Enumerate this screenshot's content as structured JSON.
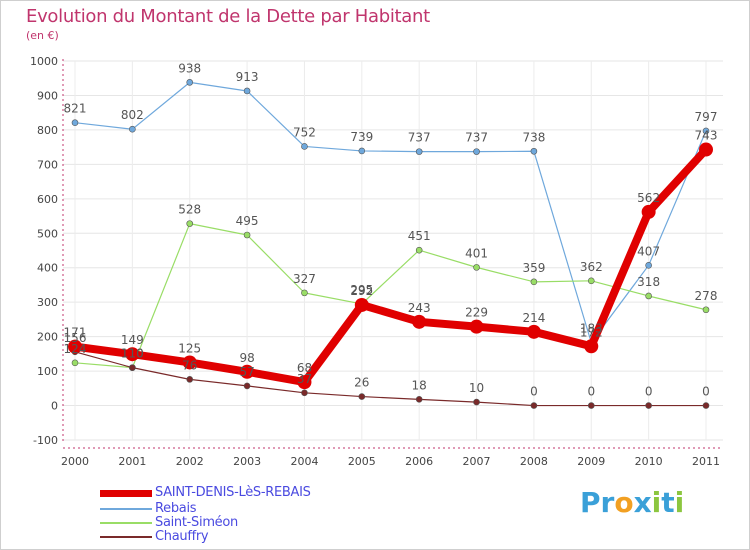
{
  "brand": {
    "letters": [
      "P",
      "r",
      "o",
      "x",
      "i",
      "t",
      "i"
    ],
    "colors": [
      "#3aa0d8",
      "#3aa0d8",
      "#f2a022",
      "#3aa0d8",
      "#8cc63f",
      "#3aa0d8",
      "#8cc63f"
    ]
  },
  "chart_data": {
    "type": "line",
    "title": "Evolution du Montant de la Dette par Habitant",
    "subtitle": "(en €)",
    "x": [
      "2000",
      "2001",
      "2002",
      "2003",
      "2004",
      "2005",
      "2006",
      "2007",
      "2008",
      "2009",
      "2010",
      "2011"
    ],
    "ylim": [
      -100,
      1000
    ],
    "yticks": [
      "-100",
      "0",
      "100",
      "200",
      "300",
      "400",
      "500",
      "600",
      "700",
      "800",
      "900",
      "1000"
    ],
    "grid": true,
    "legend_position": "bottom-left",
    "series": [
      {
        "name": "SAINT-DENIS-LèS-REBAIS",
        "color": "#e00000",
        "values": [
          171,
          149,
          125,
          98,
          68,
          292,
          243,
          229,
          214,
          172,
          562,
          743
        ],
        "labels": [
          "171",
          "149",
          "125",
          "98",
          "68",
          "292",
          "243",
          "229",
          "214",
          "172",
          "562",
          "743"
        ]
      },
      {
        "name": "Rebais",
        "color": "#6fa8dc",
        "values": [
          821,
          802,
          938,
          913,
          752,
          739,
          737,
          737,
          738,
          183,
          407,
          797
        ],
        "labels": [
          "821",
          "802",
          "938",
          "913",
          "752",
          "739",
          "737",
          "737",
          "738",
          "183",
          "407",
          "797"
        ]
      },
      {
        "name": "Saint-Siméon",
        "color": "#99dd66",
        "values": [
          124,
          110,
          528,
          495,
          327,
          295,
          451,
          401,
          359,
          362,
          318,
          278
        ],
        "labels": [
          "124",
          "110",
          "528",
          "495",
          "327",
          "295",
          "451",
          "401",
          "359",
          "362",
          "318",
          "278"
        ]
      },
      {
        "name": "Chauffry",
        "color": "#7a2a2a",
        "values": [
          156,
          110,
          76,
          57,
          37,
          26,
          18,
          10,
          0,
          0,
          0,
          0
        ],
        "labels": [
          "156",
          "110",
          "76",
          "57",
          "37",
          "26",
          "18",
          "10",
          "0",
          "0",
          "0",
          "0"
        ]
      }
    ]
  }
}
